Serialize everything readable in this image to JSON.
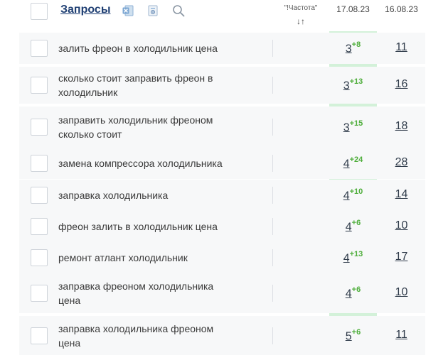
{
  "header": {
    "title": "Запросы",
    "frequency_label": "\"!Частота\"",
    "sort_glyph": "↓↑",
    "date_current": "17.08.23",
    "date_previous": "16.08.23",
    "icons": [
      "excel-icon",
      "settings-icon",
      "search-icon"
    ]
  },
  "colors": {
    "header_title": "#1f3f73",
    "highlight_column": "#d3f1d9",
    "delta_positive": "#4fae3c",
    "row_background": "#f7f8f9"
  },
  "rows": [
    {
      "query": "залить фреон в холодильник цена",
      "position": "3",
      "delta": "+8",
      "previous": "11"
    },
    {
      "query": "сколько стоит заправить фреон в холодильник",
      "position": "3",
      "delta": "+13",
      "previous": "16"
    },
    {
      "query": "заправить холодильник фреоном сколько стоит",
      "position": "3",
      "delta": "+15",
      "previous": "18"
    },
    {
      "query": "замена компрессора холодильника",
      "position": "4",
      "delta": "+24",
      "previous": "28"
    },
    {
      "query": "заправка холодильника",
      "position": "4",
      "delta": "+10",
      "previous": "14"
    },
    {
      "query": "фреон залить в холодильник цена",
      "position": "4",
      "delta": "+6",
      "previous": "10"
    },
    {
      "query": "ремонт атлант холодильник",
      "position": "4",
      "delta": "+13",
      "previous": "17"
    },
    {
      "query": "заправка фреоном холодильника цена",
      "position": "4",
      "delta": "+6",
      "previous": "10"
    },
    {
      "query": "заправка холодильника фреоном цена",
      "position": "5",
      "delta": "+6",
      "previous": "11"
    }
  ]
}
